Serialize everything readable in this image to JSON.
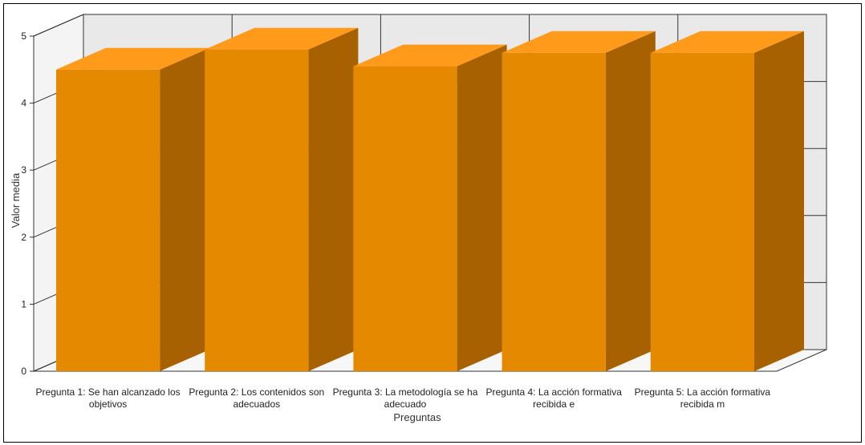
{
  "chart_data": {
    "type": "bar",
    "style": "3d",
    "categories": [
      [
        "Pregunta 1: Se han alcanzado los",
        "objetivos"
      ],
      [
        "Pregunta 2: Los contenidos son",
        "adecuados"
      ],
      [
        "Pregunta 3: La metodología se ha",
        "adecuado"
      ],
      [
        "Pregunta 4: La acción formativa",
        "recibida e"
      ],
      [
        "Pregunta 5: La acción formativa",
        "recibida m"
      ]
    ],
    "series": [
      {
        "values": [
          4.5,
          4.8,
          4.55,
          4.75,
          4.75
        ]
      }
    ],
    "xlabel": "Preguntas",
    "ylabel": "Valor media",
    "ylim": [
      0,
      5
    ],
    "yticks": [
      0,
      1,
      2,
      3,
      4,
      5
    ],
    "grid": true,
    "legend": "none",
    "colors": {
      "bar_front": "#e58a00",
      "bar_top": "#ff9a1a",
      "bar_side": "#a86100",
      "wall": "#e9e9e9",
      "grid": "#333333"
    }
  }
}
